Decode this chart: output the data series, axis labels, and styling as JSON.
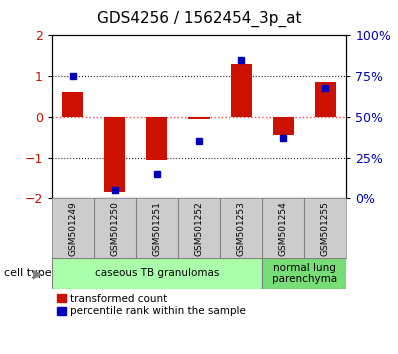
{
  "title": "GDS4256 / 1562454_3p_at",
  "samples": [
    "GSM501249",
    "GSM501250",
    "GSM501251",
    "GSM501252",
    "GSM501253",
    "GSM501254",
    "GSM501255"
  ],
  "red_values": [
    0.6,
    -1.85,
    -1.05,
    -0.05,
    1.3,
    -0.45,
    0.85
  ],
  "blue_percentiles": [
    75,
    5,
    15,
    35,
    85,
    37,
    68
  ],
  "ylim_left": [
    -2,
    2
  ],
  "ylim_right": [
    0,
    100
  ],
  "left_yticks": [
    -2,
    -1,
    0,
    1,
    2
  ],
  "right_yticks": [
    0,
    25,
    50,
    75,
    100
  ],
  "right_yticklabels": [
    "0%",
    "25%",
    "50%",
    "75%",
    "100%"
  ],
  "cell_type_groups": [
    {
      "label": "caseous TB granulomas",
      "start": 0,
      "end": 5,
      "color": "#aaffaa"
    },
    {
      "label": "normal lung\nparenchyma",
      "start": 5,
      "end": 7,
      "color": "#77dd77"
    }
  ],
  "bar_color": "#cc1100",
  "dot_color": "#0000bb",
  "zero_line_color": "#ff4444",
  "zero_line_style": "dotted",
  "dotted_line_color": "#222222",
  "sample_box_color": "#cccccc",
  "bar_width": 0.5,
  "title_fontsize": 11,
  "legend_labels": [
    "transformed count",
    "percentile rank within the sample"
  ],
  "cell_type_label": "cell type"
}
